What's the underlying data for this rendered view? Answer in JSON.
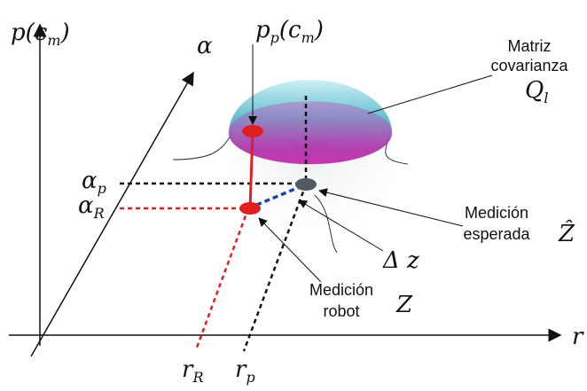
{
  "axes": {
    "vertical": [
      "p",
      "(c",
      "m",
      ")"
    ],
    "diagonal": "α",
    "horizontal": "r"
  },
  "top_label": [
    "p",
    "p",
    "(c",
    "m",
    ")"
  ],
  "covariance": {
    "lines": [
      "Matriz",
      "covarianza"
    ],
    "symbol": [
      "Q",
      "l"
    ]
  },
  "alpha_p": [
    "α",
    "p"
  ],
  "alpha_R": [
    "α",
    "R"
  ],
  "expected": {
    "lines": [
      "Medición",
      "esperada"
    ],
    "symbol": "Ẑ"
  },
  "delta": "Δ z",
  "robot": {
    "lines": [
      "Medición",
      "robot"
    ],
    "symbol": "Z"
  },
  "r_R": [
    "r",
    "R"
  ],
  "r_p": [
    "r",
    "p"
  ]
}
